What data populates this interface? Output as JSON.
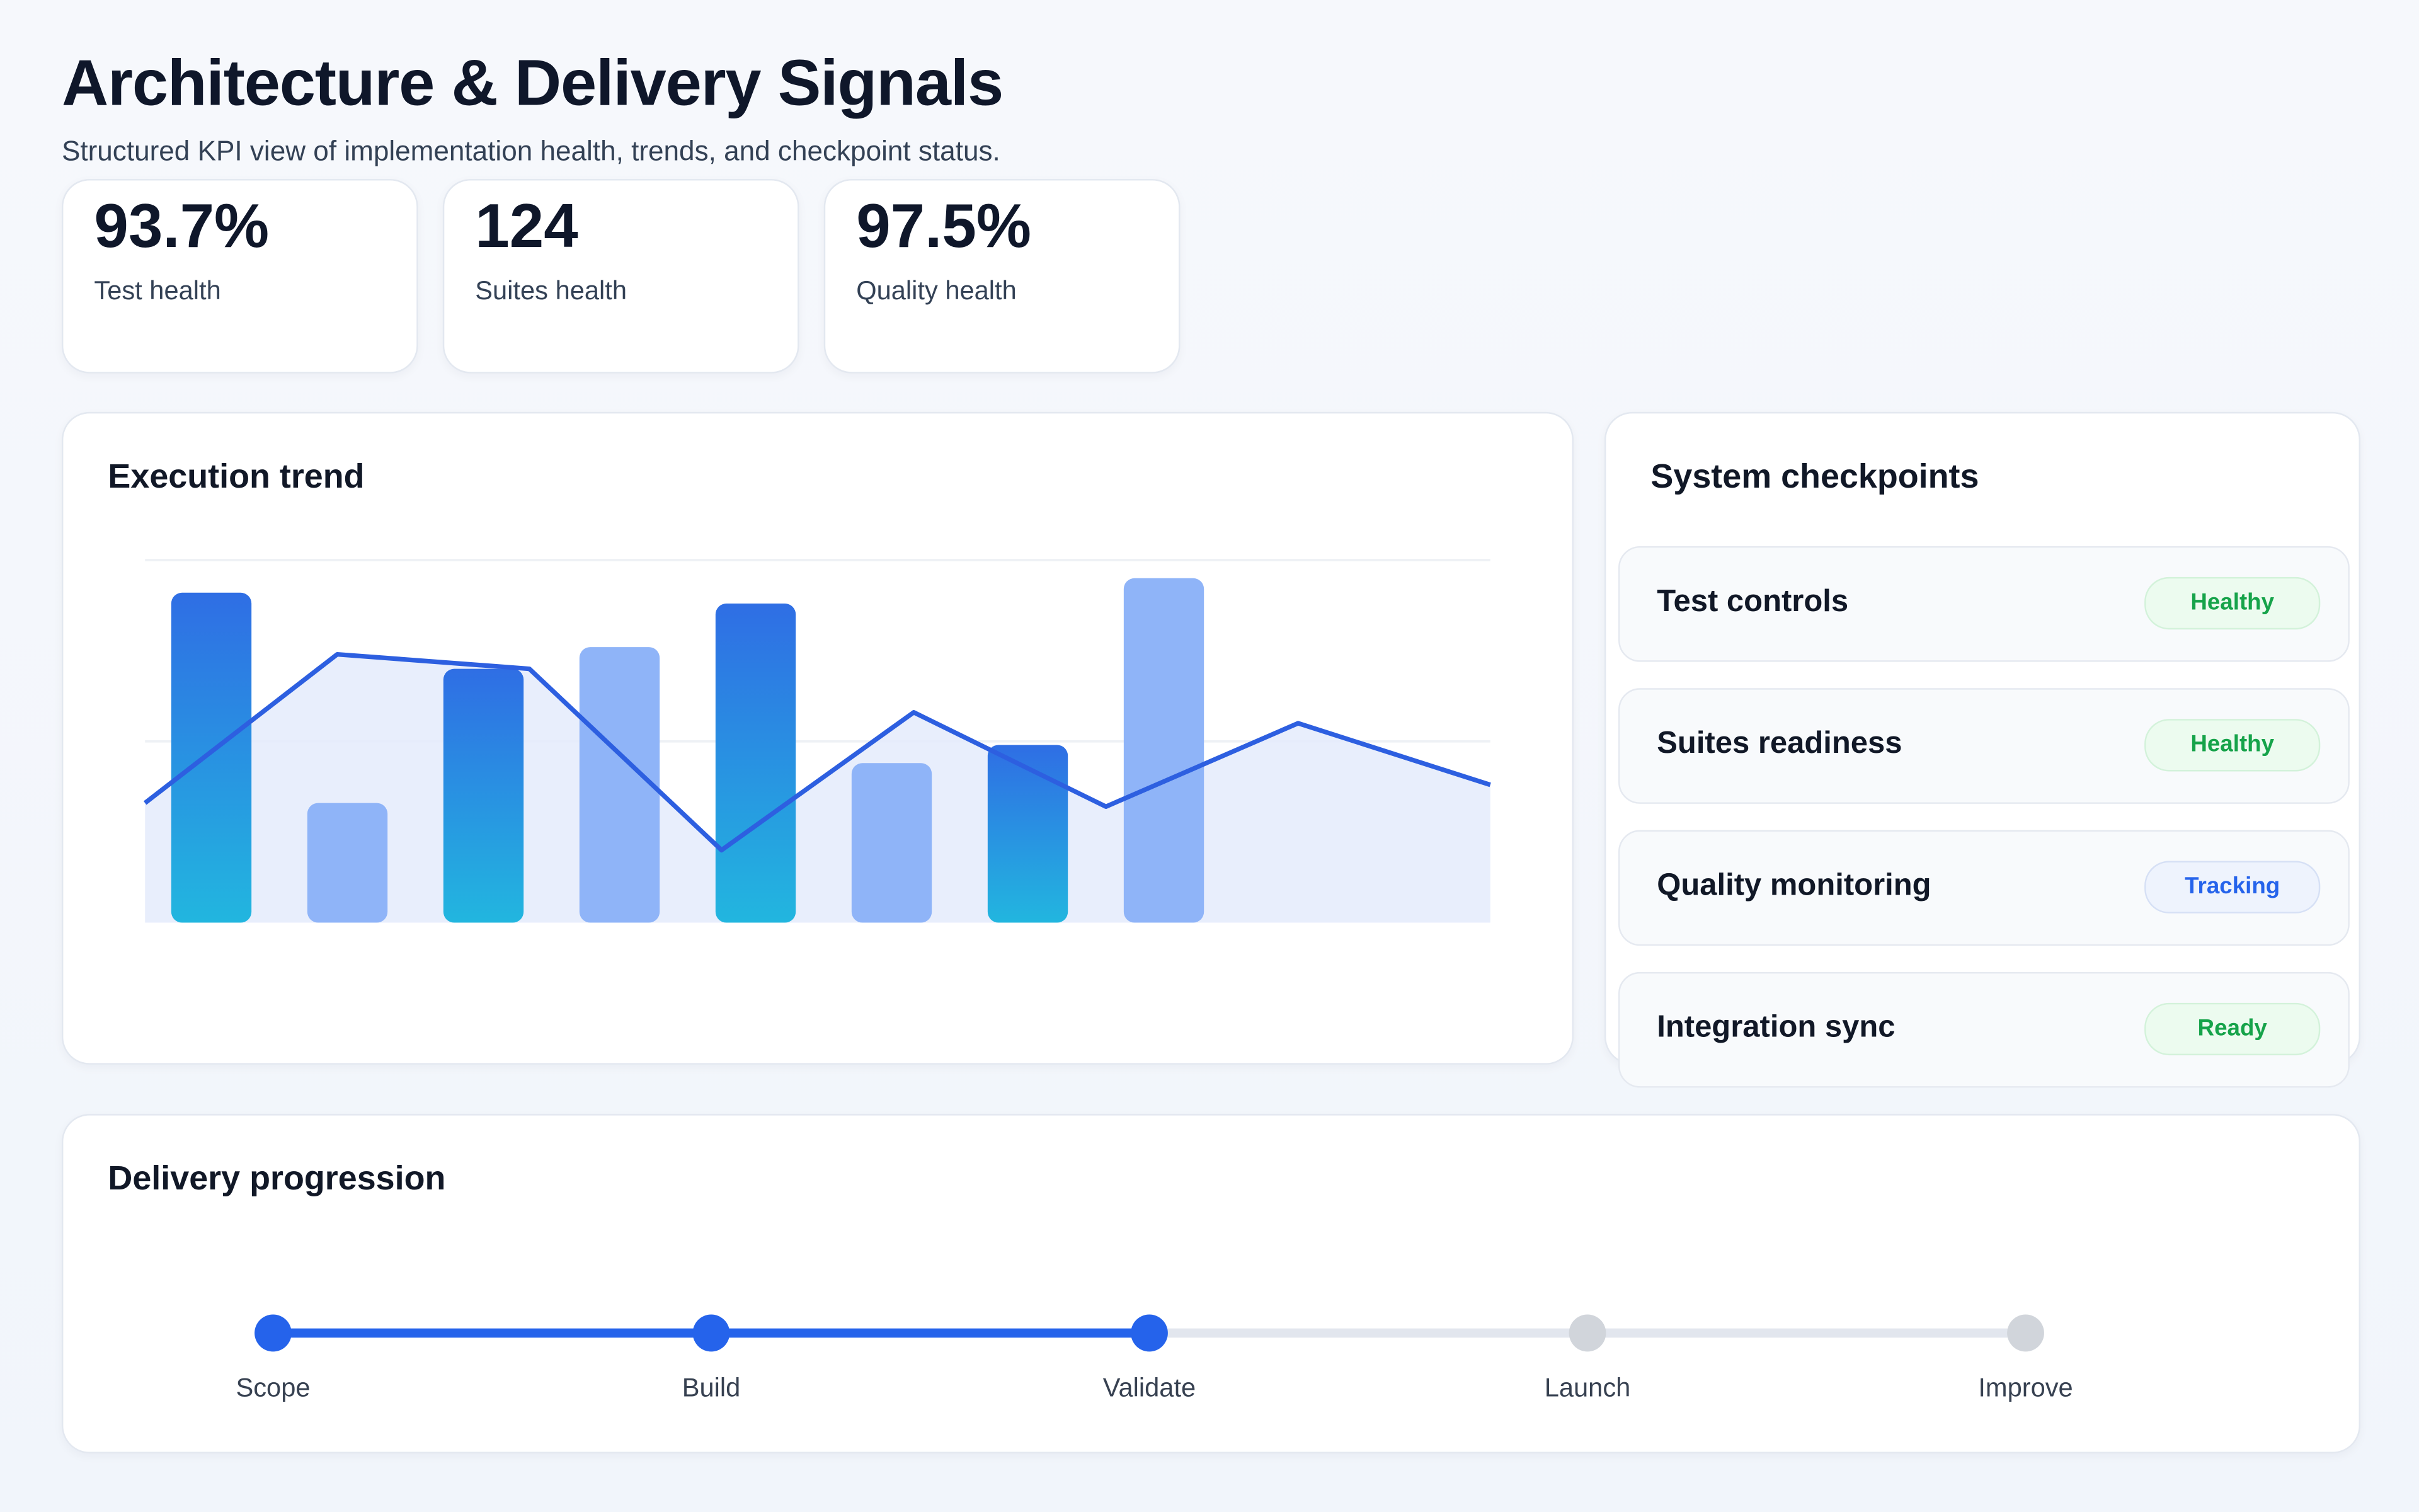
{
  "header": {
    "title": "Architecture & Delivery Signals",
    "subtitle": "Structured KPI view of implementation health, trends, and checkpoint status."
  },
  "kpis": [
    {
      "value": "93.7%",
      "label": "Test health"
    },
    {
      "value": "124",
      "label": "Suites health"
    },
    {
      "value": "97.5%",
      "label": "Quality health"
    }
  ],
  "trend": {
    "title": "Execution trend"
  },
  "chart_data": {
    "type": "bar",
    "title": "Execution trend",
    "ylim": [
      0,
      100
    ],
    "grid": true,
    "bars": [
      91,
      33,
      70,
      76,
      88,
      44,
      49,
      95
    ],
    "bar_colors": [
      "gradient",
      "#8fb4f8",
      "gradient",
      "#8fb4f8",
      "gradient",
      "#8fb4f8",
      "gradient",
      "#8fb4f8"
    ],
    "line": [
      33,
      74,
      70,
      20,
      58,
      32,
      55,
      38
    ],
    "colors": {
      "gradient_top": "#2f6ee4",
      "gradient_bottom": "#22b6df",
      "light": "#8fb4f8",
      "line": "#2d5fe0",
      "area": "#e4ebfb"
    }
  },
  "checkpoints": {
    "title": "System checkpoints",
    "items": [
      {
        "name": "Test controls",
        "status": "Healthy",
        "tone": "green"
      },
      {
        "name": "Suites readiness",
        "status": "Healthy",
        "tone": "green"
      },
      {
        "name": "Quality monitoring",
        "status": "Tracking",
        "tone": "blue"
      },
      {
        "name": "Integration sync",
        "status": "Ready",
        "tone": "green"
      }
    ]
  },
  "delivery": {
    "title": "Delivery progression",
    "steps": [
      {
        "label": "Scope",
        "done": true
      },
      {
        "label": "Build",
        "done": true
      },
      {
        "label": "Validate",
        "done": true
      },
      {
        "label": "Launch",
        "done": false
      },
      {
        "label": "Improve",
        "done": false
      }
    ],
    "colors": {
      "active": "#2563eb",
      "inactive": "#d1d5db"
    }
  }
}
